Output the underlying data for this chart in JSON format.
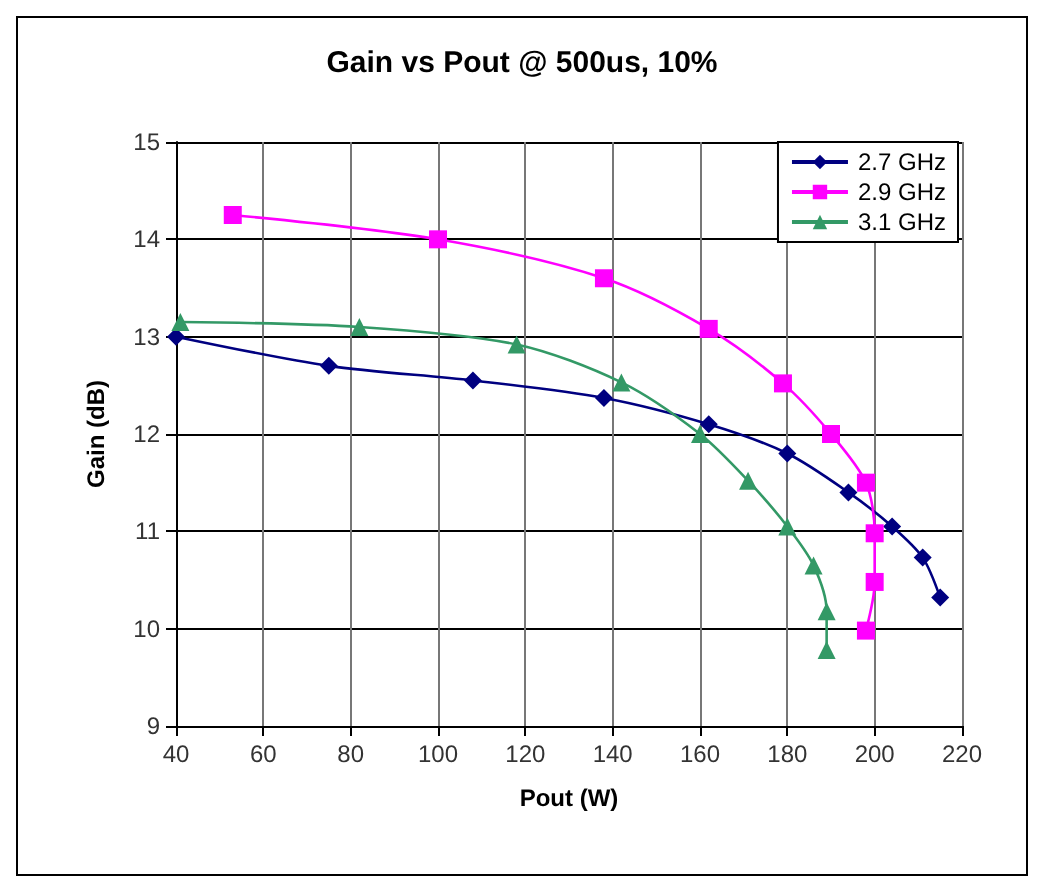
{
  "chart_data": {
    "type": "line",
    "title": "Gain vs Pout @ 500us, 10%",
    "xlabel": "Pout (W)",
    "ylabel": "Gain (dB)",
    "xlim": [
      40,
      220
    ],
    "xticks": [
      40,
      60,
      80,
      100,
      120,
      140,
      160,
      180,
      200,
      220
    ],
    "ylim": [
      9,
      15
    ],
    "yticks": [
      9,
      10,
      11,
      12,
      13,
      14,
      15
    ],
    "grid": true,
    "legend": "top right",
    "series": [
      {
        "name": "2.7 GHz",
        "color": "#000080",
        "marker": "diamond",
        "x": [
          40,
          75,
          108,
          138,
          162,
          180,
          194,
          204,
          211,
          215
        ],
        "values": [
          13.0,
          12.7,
          12.55,
          12.37,
          12.1,
          11.8,
          11.4,
          11.05,
          10.73,
          10.32
        ]
      },
      {
        "name": "2.9 GHz",
        "color": "#ff00ff",
        "marker": "square",
        "x": [
          53,
          100,
          138,
          162,
          179,
          190,
          198,
          200,
          200,
          198
        ],
        "values": [
          14.25,
          14.0,
          13.6,
          13.08,
          12.52,
          12.0,
          11.5,
          10.98,
          10.48,
          9.98
        ]
      },
      {
        "name": "3.1 GHz",
        "color": "#339966",
        "marker": "triangle",
        "x": [
          41,
          82,
          118,
          142,
          160,
          171,
          180,
          186,
          189,
          189
        ],
        "values": [
          13.15,
          13.1,
          12.92,
          12.53,
          12.0,
          11.52,
          11.05,
          10.65,
          10.18,
          9.78
        ]
      }
    ]
  }
}
